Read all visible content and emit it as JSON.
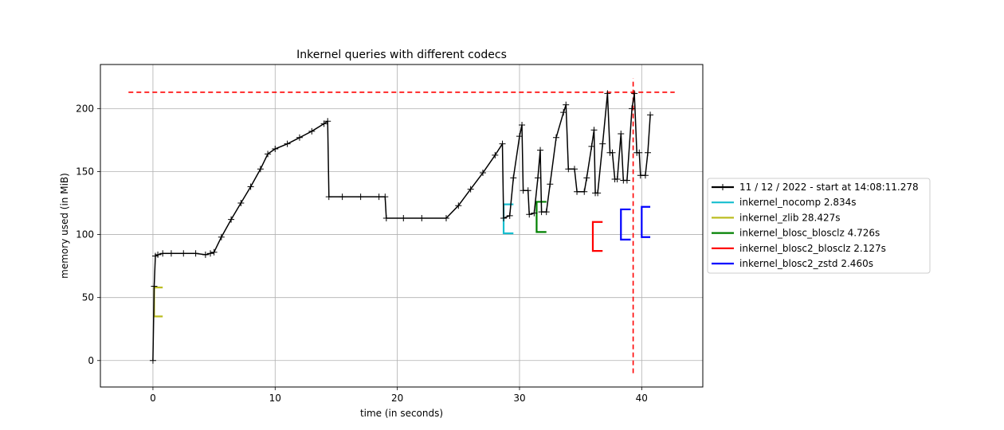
{
  "chart_data": {
    "type": "line",
    "title": "Inkernel queries with different codecs",
    "xlabel": "time (in seconds)",
    "ylabel": "memory used (in MiB)",
    "xlim": [
      -4.3,
      45
    ],
    "ylim": [
      -21,
      235
    ],
    "xticks": [
      0,
      10,
      20,
      30,
      40
    ],
    "yticks": [
      0,
      50,
      100,
      150,
      200
    ],
    "x_tick_labels": [
      "0",
      "10",
      "20",
      "30",
      "40"
    ],
    "y_tick_labels": [
      "0",
      "50",
      "100",
      "150",
      "200"
    ],
    "grid": true,
    "legend_position": "right, outside plot",
    "memory_series": {
      "name": "11 / 12 / 2022 - start at 14:08:11.278",
      "color": "#000000",
      "marker": "plus",
      "points": [
        [
          0.0,
          0
        ],
        [
          0.1,
          59
        ],
        [
          0.2,
          83
        ],
        [
          0.4,
          84
        ],
        [
          0.8,
          85
        ],
        [
          1.5,
          85
        ],
        [
          2.5,
          85
        ],
        [
          3.5,
          85
        ],
        [
          4.3,
          84
        ],
        [
          4.7,
          85
        ],
        [
          5.0,
          86
        ],
        [
          5.6,
          98
        ],
        [
          6.4,
          112
        ],
        [
          7.2,
          125
        ],
        [
          8.0,
          138
        ],
        [
          8.8,
          152
        ],
        [
          9.4,
          164
        ],
        [
          10.0,
          168
        ],
        [
          11.0,
          172
        ],
        [
          12.0,
          177
        ],
        [
          13.0,
          182
        ],
        [
          14.0,
          188
        ],
        [
          14.3,
          190
        ],
        [
          14.4,
          130
        ],
        [
          15.5,
          130
        ],
        [
          17.0,
          130
        ],
        [
          18.5,
          130
        ],
        [
          19.0,
          130
        ],
        [
          19.1,
          113
        ],
        [
          20.5,
          113
        ],
        [
          22.0,
          113
        ],
        [
          24.0,
          113
        ],
        [
          25.0,
          123
        ],
        [
          26.0,
          136
        ],
        [
          27.0,
          149
        ],
        [
          28.0,
          163
        ],
        [
          28.6,
          172
        ],
        [
          28.7,
          113
        ],
        [
          29.2,
          115
        ],
        [
          29.5,
          145
        ],
        [
          30.0,
          178
        ],
        [
          30.2,
          187
        ],
        [
          30.3,
          135
        ],
        [
          30.7,
          135
        ],
        [
          30.8,
          116
        ],
        [
          31.2,
          117
        ],
        [
          31.5,
          145
        ],
        [
          31.7,
          167
        ],
        [
          31.8,
          118
        ],
        [
          32.2,
          118
        ],
        [
          32.5,
          140
        ],
        [
          33.0,
          177
        ],
        [
          33.6,
          197
        ],
        [
          33.8,
          203
        ],
        [
          34.0,
          152
        ],
        [
          34.5,
          152
        ],
        [
          34.7,
          134
        ],
        [
          35.3,
          134
        ],
        [
          35.5,
          145
        ],
        [
          35.9,
          170
        ],
        [
          36.1,
          183
        ],
        [
          36.2,
          133
        ],
        [
          36.4,
          133
        ],
        [
          36.8,
          172
        ],
        [
          37.2,
          212
        ],
        [
          37.4,
          165
        ],
        [
          37.6,
          165
        ],
        [
          37.8,
          144
        ],
        [
          38.0,
          144
        ],
        [
          38.3,
          180
        ],
        [
          38.5,
          143
        ],
        [
          38.8,
          143
        ],
        [
          39.2,
          200
        ],
        [
          39.4,
          212
        ],
        [
          39.6,
          165
        ],
        [
          39.8,
          165
        ],
        [
          39.9,
          147
        ],
        [
          40.3,
          147
        ],
        [
          40.5,
          165
        ],
        [
          40.7,
          195
        ]
      ]
    },
    "series": [
      {
        "name": "inkernel_nocomp 2.834s",
        "color": "#17becf",
        "start": 28.7,
        "end": 29.5,
        "y_low": 101,
        "y_high": 124
      },
      {
        "name": "inkernel_zlib 28.427s",
        "color": "#bcbd22",
        "start": 0.1,
        "end": 0.8,
        "y_low": 35,
        "y_high": 58
      },
      {
        "name": "inkernel_blosc_blosclz 4.726s",
        "color": "#008000",
        "start": 31.4,
        "end": 32.2,
        "y_low": 102,
        "y_high": 126
      },
      {
        "name": "inkernel_blosc2_blosclz 2.127s",
        "color": "#ff0000",
        "start": 36.0,
        "end": 36.8,
        "y_low": 87,
        "y_high": 110
      },
      {
        "name": "inkernel_blosc2_zstd 2.460s",
        "color": "#0000ff",
        "start": 38.3,
        "end": 39.1,
        "y_low": 96,
        "y_high": 120
      },
      {
        "name": "inkernel_blosc2_zstd 2.460s",
        "color": "#0000ff",
        "start": 40.0,
        "end": 40.7,
        "y_low": 98,
        "y_high": 122
      }
    ],
    "max_memory": {
      "y": 213,
      "x_from": -2.0,
      "x_to": 42.7,
      "color": "#ff0000"
    },
    "max_memory_time": {
      "x": 39.3,
      "y_from": -10,
      "y_to": 224,
      "color": "#ff0000"
    },
    "legend": [
      {
        "label": "11 / 12 / 2022 - start at 14:08:11.278",
        "color": "#000000",
        "marker": "plus"
      },
      {
        "label": "inkernel_nocomp 2.834s",
        "color": "#17becf"
      },
      {
        "label": "inkernel_zlib 28.427s",
        "color": "#bcbd22"
      },
      {
        "label": "inkernel_blosc_blosclz 4.726s",
        "color": "#008000"
      },
      {
        "label": "inkernel_blosc2_blosclz 2.127s",
        "color": "#ff0000"
      },
      {
        "label": "inkernel_blosc2_zstd 2.460s",
        "color": "#0000ff"
      }
    ]
  }
}
